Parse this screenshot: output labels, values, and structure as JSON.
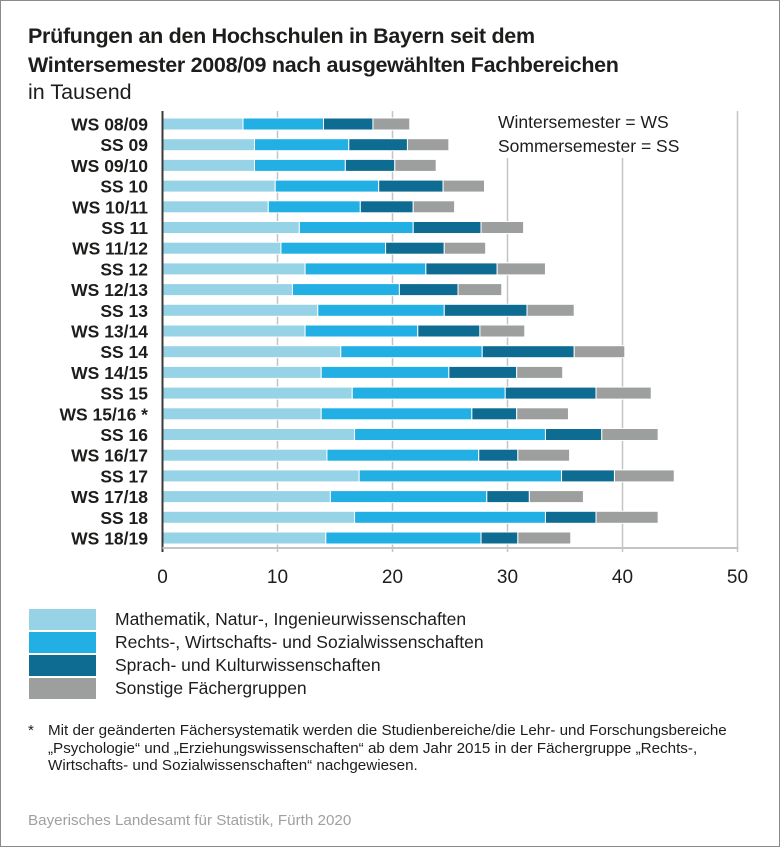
{
  "title_line1": "Prüfungen an den Hochschulen in Bayern seit dem",
  "title_line2": "Wintersemester 2008/09 nach ausgewählten Fachbereichen",
  "subtitle": "in Tausend",
  "note": {
    "line1": "Wintersemester = WS",
    "line2": "Sommersemester = SS"
  },
  "footnote": {
    "marker": "*",
    "text": "Mit der geänderten Fächersystematik werden die Studienbereiche/die Lehr- und Forschungsbereiche „Psychologie“ und „Erziehungswissenschaften“ ab dem Jahr 2015 in der Fächergruppe „Rechts-, Wirtschafts- und Sozialwissenschaften“ nachgewiesen."
  },
  "source": "Bayerisches Landesamt für Statistik, Fürth 2020",
  "chart_data": {
    "type": "bar",
    "orientation": "horizontal",
    "stacked": true,
    "title": "Prüfungen an den Hochschulen in Bayern seit dem Wintersemester 2008/09 nach ausgewählten Fachbereichen",
    "subtitle": "in Tausend",
    "xlabel": "",
    "ylabel": "",
    "xlim": [
      0,
      50
    ],
    "xticks": [
      0,
      10,
      20,
      30,
      40,
      50
    ],
    "grid": true,
    "legend_position": "bottom-left",
    "categories": [
      "WS 08/09",
      "SS 09",
      "WS 09/10",
      "SS 10",
      "WS 10/11",
      "SS 11",
      "WS 11/12",
      "SS 12",
      "WS 12/13",
      "SS 13",
      "WS 13/14",
      "SS 14",
      "WS 14/15",
      "SS 15",
      "WS 15/16 *",
      "SS 16",
      "WS 16/17",
      "SS 17",
      "WS 17/18",
      "SS 18",
      "WS 18/19"
    ],
    "series": [
      {
        "name": "Mathematik, Natur-, Ingenieurwissenschaften",
        "color": "#97d3e6",
        "values": [
          7.0,
          8.0,
          8.0,
          9.8,
          9.2,
          11.9,
          10.3,
          12.4,
          11.3,
          13.5,
          12.4,
          15.5,
          13.8,
          16.5,
          13.8,
          16.7,
          14.3,
          17.1,
          14.6,
          16.7,
          14.2
        ]
      },
      {
        "name": "Rechts-, Wirtschafts- und Sozialwissenschaften",
        "color": "#22afe3",
        "values": [
          7.0,
          8.2,
          7.9,
          9.0,
          8.0,
          9.9,
          9.1,
          10.5,
          9.3,
          11.0,
          9.8,
          12.3,
          11.1,
          13.3,
          13.1,
          16.6,
          13.2,
          17.6,
          13.6,
          16.6,
          13.5
        ]
      },
      {
        "name": "Sprach- und Kulturwissenschaften",
        "color": "#0e6b92",
        "values": [
          4.3,
          5.1,
          4.3,
          5.6,
          4.6,
          5.9,
          5.1,
          6.2,
          5.1,
          7.2,
          5.4,
          8.0,
          5.9,
          7.9,
          3.9,
          4.9,
          3.4,
          4.6,
          3.7,
          4.4,
          3.2
        ]
      },
      {
        "name": "Sonstige Fächergruppen",
        "color": "#9d9e9e",
        "values": [
          3.2,
          3.6,
          3.6,
          3.6,
          3.6,
          3.7,
          3.6,
          4.2,
          3.8,
          4.1,
          3.9,
          4.4,
          4.0,
          4.8,
          4.5,
          4.9,
          4.5,
          5.2,
          4.7,
          5.4,
          4.6
        ]
      }
    ]
  }
}
